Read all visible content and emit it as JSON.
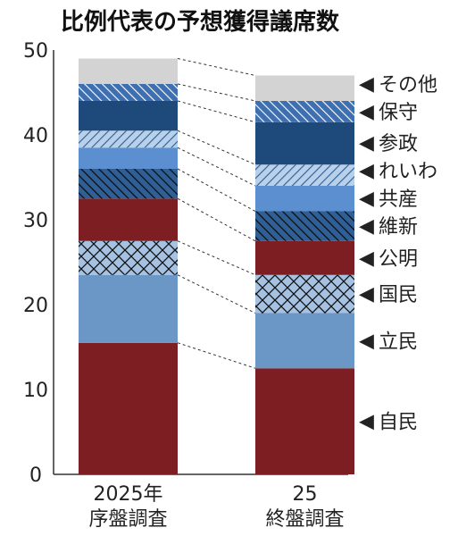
{
  "chart_data": {
    "type": "bar",
    "stacked": true,
    "title": "比例代表の予想獲得議席数",
    "categories": [
      {
        "line1": "2025年",
        "line2": "序盤調査"
      },
      {
        "line1": "25",
        "line2": "終盤調査"
      }
    ],
    "ylim": [
      0,
      50
    ],
    "yticks": [
      "0",
      "10",
      "20",
      "30",
      "40",
      "50"
    ],
    "grid": false,
    "legend_placement": "right",
    "legend_marker": "◀",
    "series": [
      {
        "name": "自民",
        "values": [
          15.5,
          12.5
        ],
        "color": "#7d1f22",
        "pattern": "none"
      },
      {
        "name": "立民",
        "values": [
          8,
          6.5
        ],
        "color": "#6a97c6",
        "pattern": "none"
      },
      {
        "name": "国民",
        "values": [
          4,
          4.5
        ],
        "color": "#a5c2e2",
        "pattern": "crosshatch"
      },
      {
        "name": "公明",
        "values": [
          5,
          4
        ],
        "color": "#7d1f22",
        "pattern": "none"
      },
      {
        "name": "維新",
        "values": [
          3.5,
          3.5
        ],
        "color": "#2f5f94",
        "pattern": "hatch-dense"
      },
      {
        "name": "共産",
        "values": [
          2.5,
          3
        ],
        "color": "#5b8fd0",
        "pattern": "none"
      },
      {
        "name": "れいわ",
        "values": [
          2,
          2.5
        ],
        "color": "#b8d0ea",
        "pattern": "hatch-light"
      },
      {
        "name": "参政",
        "values": [
          3.5,
          5
        ],
        "color": "#1d4a7a",
        "pattern": "none"
      },
      {
        "name": "保守",
        "values": [
          2,
          2.5
        ],
        "color": "#3e6fb0",
        "pattern": "hatch-white"
      },
      {
        "name": "その他",
        "values": [
          3,
          3
        ],
        "color": "#d3d3d3",
        "pattern": "none"
      }
    ]
  }
}
